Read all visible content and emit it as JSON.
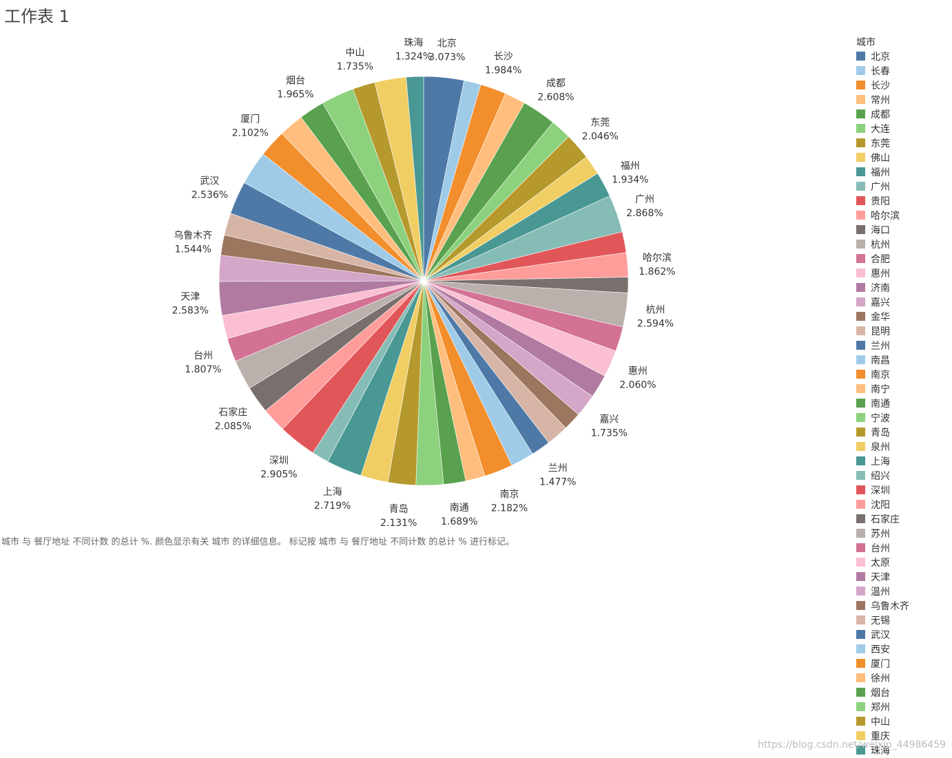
{
  "sheet": {
    "title": "工作表 1",
    "caption": "城市 与 餐厅地址 不同计数 的总计 %. 颜色显示有关 城市 的详细信息。 标记按 城市 与 餐厅地址 不同计数 的总计 % 进行标记。"
  },
  "watermark": "https://blog.csdn.net/weixin_44986459",
  "chart_data": {
    "type": "pie",
    "legend_title": "城市",
    "legend_position": "right",
    "value_format": "percent",
    "slices": [
      {
        "label": "北京",
        "value": 3.073,
        "display": "3.073%",
        "color": "#4e79a7",
        "labeled": true
      },
      {
        "label": "长春",
        "value": 1.3,
        "display": "",
        "color": "#a0cbe8",
        "labeled": false
      },
      {
        "label": "长沙",
        "value": 1.984,
        "display": "1.984%",
        "color": "#f28e2b",
        "labeled": true
      },
      {
        "label": "常州",
        "value": 1.6,
        "display": "",
        "color": "#ffbe7d",
        "labeled": false
      },
      {
        "label": "成都",
        "value": 2.608,
        "display": "2.608%",
        "color": "#59a14f",
        "labeled": true
      },
      {
        "label": "大连",
        "value": 1.6,
        "display": "",
        "color": "#8cd17d",
        "labeled": false
      },
      {
        "label": "东莞",
        "value": 2.046,
        "display": "2.046%",
        "color": "#b6992d",
        "labeled": true
      },
      {
        "label": "佛山",
        "value": 1.5,
        "display": "",
        "color": "#f1ce63",
        "labeled": false
      },
      {
        "label": "福州",
        "value": 1.934,
        "display": "1.934%",
        "color": "#499894",
        "labeled": true
      },
      {
        "label": "广州",
        "value": 2.868,
        "display": "2.868%",
        "color": "#86bcb6",
        "labeled": true
      },
      {
        "label": "贵阳",
        "value": 1.6,
        "display": "",
        "color": "#e15759",
        "labeled": false
      },
      {
        "label": "哈尔滨",
        "value": 1.862,
        "display": "1.862%",
        "color": "#ff9d9a",
        "labeled": true
      },
      {
        "label": "海口",
        "value": 1.2,
        "display": "",
        "color": "#79706e",
        "labeled": false
      },
      {
        "label": "杭州",
        "value": 2.594,
        "display": "2.594%",
        "color": "#bab0ac",
        "labeled": true
      },
      {
        "label": "合肥",
        "value": 1.9,
        "display": "",
        "color": "#d37295",
        "labeled": false
      },
      {
        "label": "惠州",
        "value": 2.06,
        "display": "2.060%",
        "color": "#fabfd2",
        "labeled": true
      },
      {
        "label": "济南",
        "value": 1.8,
        "display": "",
        "color": "#b07aa1",
        "labeled": false
      },
      {
        "label": "嘉兴",
        "value": 1.735,
        "display": "1.735%",
        "color": "#d4a6c8",
        "labeled": true
      },
      {
        "label": "金华",
        "value": 1.4,
        "display": "",
        "color": "#9d7660",
        "labeled": false
      },
      {
        "label": "昆明",
        "value": 1.7,
        "display": "",
        "color": "#d7b5a6",
        "labeled": false
      },
      {
        "label": "兰州",
        "value": 1.477,
        "display": "1.477%",
        "color": "#4e79a7",
        "labeled": true
      },
      {
        "label": "南昌",
        "value": 1.8,
        "display": "",
        "color": "#a0cbe8",
        "labeled": false
      },
      {
        "label": "南京",
        "value": 2.182,
        "display": "2.182%",
        "color": "#f28e2b",
        "labeled": true
      },
      {
        "label": "南宁",
        "value": 1.5,
        "display": "",
        "color": "#ffbe7d",
        "labeled": false
      },
      {
        "label": "南通",
        "value": 1.689,
        "display": "1.689%",
        "color": "#59a14f",
        "labeled": true
      },
      {
        "label": "宁波",
        "value": 2.1,
        "display": "",
        "color": "#8cd17d",
        "labeled": false
      },
      {
        "label": "青岛",
        "value": 2.131,
        "display": "2.131%",
        "color": "#b6992d",
        "labeled": true
      },
      {
        "label": "泉州",
        "value": 2.1,
        "display": "",
        "color": "#f1ce63",
        "labeled": false
      },
      {
        "label": "上海",
        "value": 2.719,
        "display": "2.719%",
        "color": "#499894",
        "labeled": true
      },
      {
        "label": "绍兴",
        "value": 1.3,
        "display": "",
        "color": "#86bcb6",
        "labeled": false
      },
      {
        "label": "深圳",
        "value": 2.905,
        "display": "2.905%",
        "color": "#e15759",
        "labeled": true
      },
      {
        "label": "沈阳",
        "value": 1.9,
        "display": "",
        "color": "#ff9d9a",
        "labeled": false
      },
      {
        "label": "石家庄",
        "value": 2.085,
        "display": "2.085%",
        "color": "#79706e",
        "labeled": true
      },
      {
        "label": "苏州",
        "value": 2.3,
        "display": "",
        "color": "#bab0ac",
        "labeled": false
      },
      {
        "label": "台州",
        "value": 1.807,
        "display": "1.807%",
        "color": "#d37295",
        "labeled": true
      },
      {
        "label": "太原",
        "value": 1.8,
        "display": "",
        "color": "#fabfd2",
        "labeled": false
      },
      {
        "label": "天津",
        "value": 2.583,
        "display": "2.583%",
        "color": "#b07aa1",
        "labeled": true
      },
      {
        "label": "温州",
        "value": 2.0,
        "display": "",
        "color": "#d4a6c8",
        "labeled": false
      },
      {
        "label": "乌鲁木齐",
        "value": 1.544,
        "display": "1.544%",
        "color": "#9d7660",
        "labeled": true
      },
      {
        "label": "无锡",
        "value": 1.7,
        "display": "",
        "color": "#d7b5a6",
        "labeled": false
      },
      {
        "label": "武汉",
        "value": 2.536,
        "display": "2.536%",
        "color": "#4e79a7",
        "labeled": true
      },
      {
        "label": "西安",
        "value": 2.6,
        "display": "",
        "color": "#a0cbe8",
        "labeled": false
      },
      {
        "label": "厦门",
        "value": 2.102,
        "display": "2.102%",
        "color": "#f28e2b",
        "labeled": true
      },
      {
        "label": "徐州",
        "value": 1.9,
        "display": "",
        "color": "#ffbe7d",
        "labeled": false
      },
      {
        "label": "烟台",
        "value": 1.965,
        "display": "1.965%",
        "color": "#59a14f",
        "labeled": true
      },
      {
        "label": "郑州",
        "value": 2.5,
        "display": "",
        "color": "#8cd17d",
        "labeled": false
      },
      {
        "label": "中山",
        "value": 1.735,
        "display": "1.735%",
        "color": "#b6992d",
        "labeled": true
      },
      {
        "label": "重庆",
        "value": 2.4,
        "display": "",
        "color": "#f1ce63",
        "labeled": false
      },
      {
        "label": "珠海",
        "value": 1.324,
        "display": "1.324%",
        "color": "#499894",
        "labeled": true
      }
    ]
  }
}
